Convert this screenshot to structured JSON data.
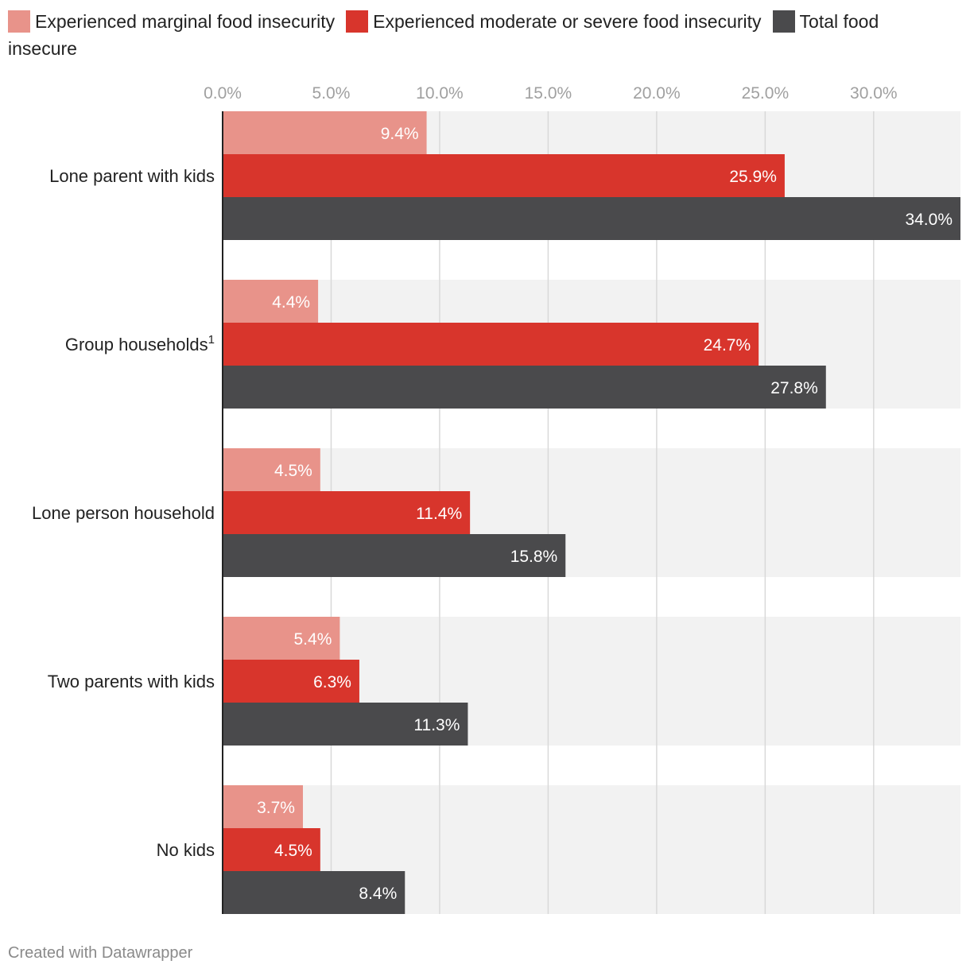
{
  "chart_data": {
    "type": "bar",
    "orientation": "horizontal",
    "categories": [
      {
        "label": "Lone parent with kids",
        "sup": ""
      },
      {
        "label": "Group households",
        "sup": "1"
      },
      {
        "label": "Lone person household",
        "sup": ""
      },
      {
        "label": "Two parents with kids",
        "sup": ""
      },
      {
        "label": "No kids",
        "sup": ""
      }
    ],
    "series": [
      {
        "name": "Experienced marginal food insecurity",
        "color": "#e8938a",
        "values": [
          9.4,
          4.4,
          4.5,
          5.4,
          3.7
        ]
      },
      {
        "name": "Experienced moderate or severe food insecurity",
        "color": "#d8352c",
        "values": [
          25.9,
          24.7,
          11.4,
          6.3,
          4.5
        ]
      },
      {
        "name": "Total food insecure",
        "color": "#4a4a4c",
        "values": [
          34.0,
          27.8,
          15.8,
          11.3,
          8.4
        ]
      }
    ],
    "value_suffix": "%",
    "value_decimals": 1,
    "x_ticks": [
      "0.0%",
      "5.0%",
      "10.0%",
      "15.0%",
      "20.0%",
      "25.0%",
      "30.0%"
    ],
    "x_tick_values": [
      0,
      5,
      10,
      15,
      20,
      25,
      30
    ],
    "xlim": [
      0,
      34
    ],
    "grid": true,
    "legend_position": "top",
    "row_band_color": "#f2f2f2",
    "grid_color": "#d9d9d9",
    "axis_color": "#222222"
  },
  "footer": {
    "credit": "Created with Datawrapper"
  }
}
